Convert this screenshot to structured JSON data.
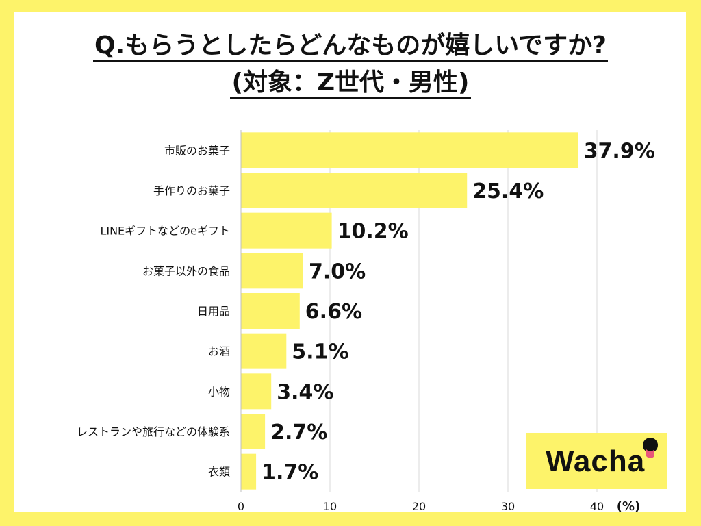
{
  "title": {
    "line1": "Q.もらうとしたらどんなものが嬉しいですか?",
    "line2": "(対象：Z世代・男性)"
  },
  "brand": {
    "logo_text": "Wacha",
    "background_color": "#fdf36a"
  },
  "chart_data": {
    "type": "bar",
    "orientation": "horizontal",
    "categories": [
      "市販のお菓子",
      "手作りのお菓子",
      "LINEギフトなどのeギフト",
      "お菓子以外の食品",
      "日用品",
      "お酒",
      "小物",
      "レストランや旅行などの体験系",
      "衣類"
    ],
    "values": [
      37.9,
      25.4,
      10.2,
      7.0,
      6.6,
      5.1,
      3.4,
      2.7,
      1.7
    ],
    "value_labels": [
      "37.9%",
      "25.4%",
      "10.2%",
      "7.0%",
      "6.6%",
      "5.1%",
      "3.4%",
      "2.7%",
      "1.7%"
    ],
    "xlim": [
      0,
      40
    ],
    "xticks": [
      0,
      10,
      20,
      30,
      40
    ],
    "xunit": "(%)",
    "grid": true,
    "bar_color": "#fdf36a",
    "grid_color": "#d9d9d9"
  }
}
